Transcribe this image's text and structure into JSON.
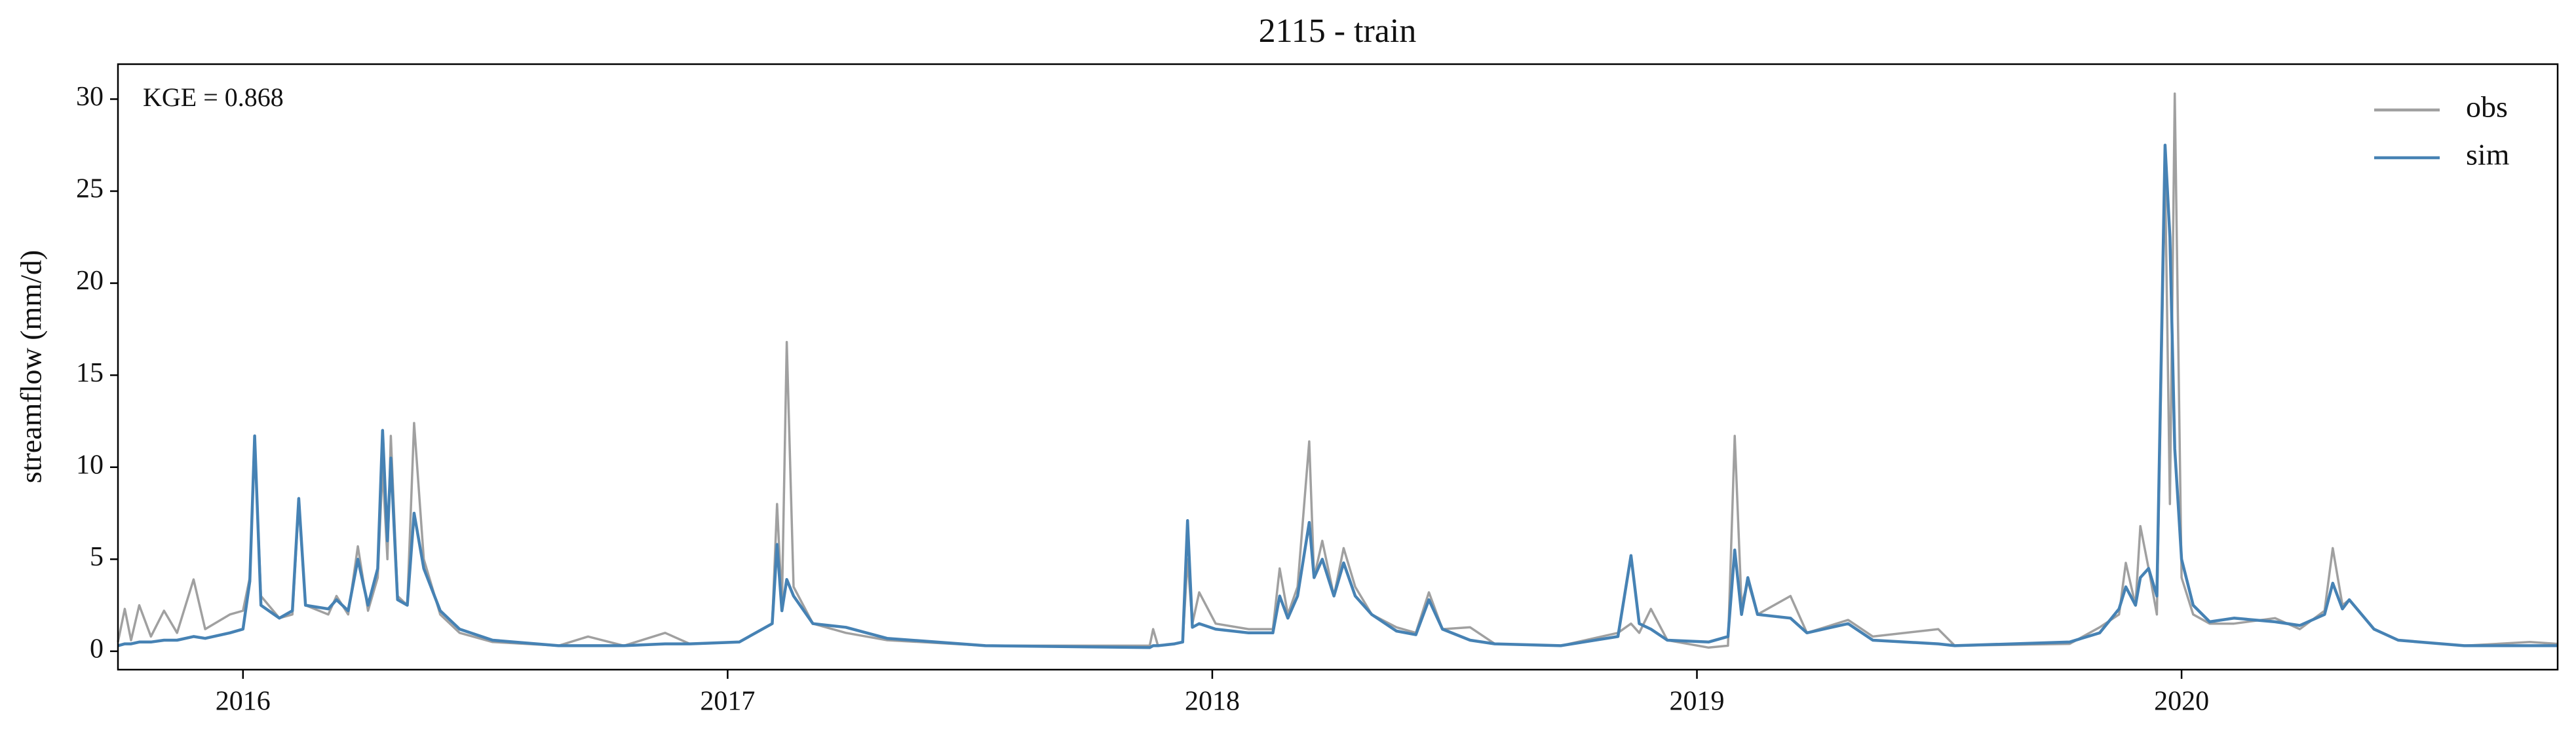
{
  "chart_data": {
    "type": "line",
    "title": "2115 - train",
    "ylabel": "streamflow (mm/d)",
    "annotation": "KGE = 0.868",
    "legend": "upper right",
    "xlim": [
      2015.742,
      2020.776
    ],
    "xticks": [
      2016,
      2017,
      2018,
      2019,
      2020
    ],
    "ylim": [
      -1,
      31.9
    ],
    "yticks": [
      0,
      5,
      10,
      15,
      20,
      25,
      30
    ],
    "x": [
      2015.742,
      2015.756,
      2015.769,
      2015.786,
      2015.81,
      2015.837,
      2015.864,
      2015.898,
      2015.922,
      2015.973,
      2016.0,
      2016.014,
      2016.024,
      2016.037,
      2016.075,
      2016.102,
      2016.115,
      2016.129,
      2016.176,
      2016.193,
      2016.217,
      2016.237,
      2016.258,
      2016.278,
      2016.288,
      2016.298,
      2016.305,
      2016.319,
      2016.339,
      2016.353,
      2016.373,
      2016.407,
      2016.447,
      2016.515,
      2016.651,
      2016.712,
      2016.786,
      2016.871,
      2016.922,
      2017.024,
      2017.092,
      2017.102,
      2017.112,
      2017.122,
      2017.136,
      2017.176,
      2017.244,
      2017.329,
      2017.532,
      2017.871,
      2017.878,
      2017.888,
      2017.922,
      2017.939,
      2017.949,
      2017.959,
      2017.973,
      2018.007,
      2018.075,
      2018.125,
      2018.139,
      2018.156,
      2018.176,
      2018.2,
      2018.21,
      2018.227,
      2018.251,
      2018.271,
      2018.295,
      2018.329,
      2018.38,
      2018.42,
      2018.447,
      2018.475,
      2018.532,
      2018.583,
      2018.719,
      2018.837,
      2018.864,
      2018.881,
      2018.905,
      2018.939,
      2019.024,
      2019.064,
      2019.078,
      2019.092,
      2019.105,
      2019.125,
      2019.193,
      2019.227,
      2019.312,
      2019.363,
      2019.498,
      2019.532,
      2019.769,
      2019.831,
      2019.871,
      2019.885,
      2019.905,
      2019.915,
      2019.932,
      2019.949,
      2019.966,
      2019.976,
      2019.986,
      2020.0,
      2020.024,
      2020.058,
      2020.108,
      2020.193,
      2020.244,
      2020.295,
      2020.312,
      2020.332,
      2020.346,
      2020.397,
      2020.447,
      2020.583,
      2020.719,
      2020.776
    ],
    "series": [
      {
        "name": "obs",
        "color": "#a0a0a0",
        "values": [
          0.5,
          2.3,
          0.6,
          2.5,
          0.8,
          2.2,
          1.0,
          3.9,
          1.2,
          2.0,
          2.2,
          4.0,
          11.5,
          3.0,
          1.8,
          2.0,
          8.0,
          2.5,
          2.0,
          3.0,
          2.0,
          5.7,
          2.2,
          4.0,
          10.0,
          5.0,
          11.7,
          3.0,
          2.5,
          12.4,
          5.0,
          2.0,
          1.0,
          0.5,
          0.3,
          0.8,
          0.3,
          1.0,
          0.4,
          0.5,
          1.5,
          8.0,
          2.5,
          16.8,
          3.5,
          1.5,
          1.0,
          0.6,
          0.3,
          0.3,
          1.2,
          0.3,
          0.4,
          0.5,
          5.0,
          1.5,
          3.2,
          1.5,
          1.2,
          1.2,
          4.5,
          2.0,
          3.5,
          11.4,
          4.0,
          6.0,
          3.0,
          5.6,
          3.5,
          2.0,
          1.3,
          1.0,
          3.2,
          1.2,
          1.3,
          0.4,
          0.3,
          1.0,
          1.5,
          1.0,
          2.3,
          0.6,
          0.2,
          0.3,
          11.7,
          2.5,
          3.8,
          2.0,
          3.0,
          1.0,
          1.7,
          0.8,
          1.2,
          0.3,
          0.4,
          1.3,
          2.0,
          4.8,
          2.5,
          6.8,
          4.5,
          2.0,
          26.0,
          8.0,
          30.3,
          4.0,
          2.0,
          1.5,
          1.5,
          1.8,
          1.2,
          2.2,
          5.6,
          2.5,
          2.8,
          1.2,
          0.6,
          0.3,
          0.5,
          0.4
        ]
      },
      {
        "name": "sim",
        "color": "#4682b4",
        "values": [
          0.3,
          0.4,
          0.4,
          0.5,
          0.5,
          0.6,
          0.6,
          0.8,
          0.7,
          1.0,
          1.2,
          3.8,
          11.7,
          2.5,
          1.8,
          2.2,
          8.3,
          2.5,
          2.3,
          2.8,
          2.2,
          5.0,
          2.5,
          4.5,
          12.0,
          6.0,
          10.5,
          2.8,
          2.5,
          7.5,
          4.5,
          2.2,
          1.2,
          0.6,
          0.3,
          0.3,
          0.3,
          0.4,
          0.4,
          0.5,
          1.5,
          5.8,
          2.2,
          3.9,
          3.0,
          1.5,
          1.3,
          0.7,
          0.3,
          0.2,
          0.3,
          0.3,
          0.4,
          0.5,
          7.1,
          1.3,
          1.5,
          1.2,
          1.0,
          1.0,
          3.0,
          1.8,
          3.0,
          7.0,
          4.0,
          5.0,
          3.0,
          4.8,
          3.0,
          2.0,
          1.1,
          0.9,
          2.8,
          1.2,
          0.6,
          0.4,
          0.3,
          0.8,
          5.2,
          1.5,
          1.2,
          0.6,
          0.5,
          0.8,
          5.5,
          2.0,
          4.0,
          2.0,
          1.8,
          1.0,
          1.5,
          0.6,
          0.4,
          0.3,
          0.5,
          1.0,
          2.3,
          3.5,
          2.5,
          4.0,
          4.5,
          3.0,
          27.5,
          22.5,
          11.0,
          5.0,
          2.5,
          1.6,
          1.8,
          1.6,
          1.4,
          2.0,
          3.7,
          2.3,
          2.8,
          1.2,
          0.6,
          0.3,
          0.3,
          0.3
        ]
      }
    ]
  }
}
